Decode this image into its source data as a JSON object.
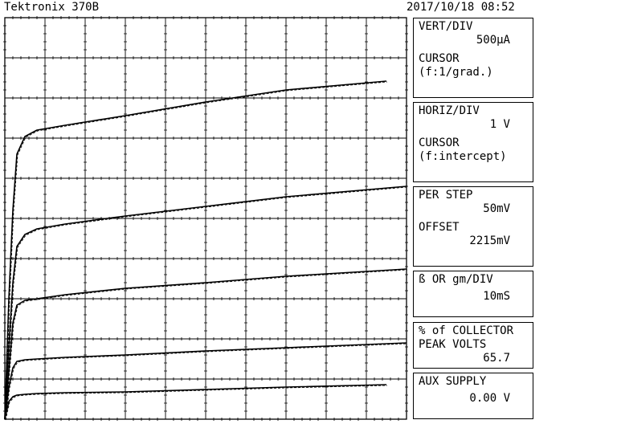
{
  "header": {
    "title": "Tektronix 370B",
    "datetime": "2017/10/18 08:52"
  },
  "panels": {
    "vert": {
      "label": "VERT/DIV",
      "value": "500µA",
      "cursor_label": "CURSOR",
      "cursor_mode": "(f:1/grad.)"
    },
    "horiz": {
      "label": "HORIZ/DIV",
      "value": "1 V",
      "cursor_label": "CURSOR",
      "cursor_mode": "(f:intercept)"
    },
    "step": {
      "label": "PER STEP",
      "value": "50mV",
      "offset_label": "OFFSET",
      "offset_value": "2215mV"
    },
    "beta": {
      "label": "ß OR gm/DIV",
      "value": "10mS"
    },
    "collector": {
      "label1": "% of COLLECTOR",
      "label2": "PEAK VOLTS",
      "value": "65.7"
    },
    "aux": {
      "label": "AUX SUPPLY",
      "value": "0.00 V"
    }
  },
  "chart_data": {
    "type": "line",
    "grid": true,
    "x_divisions": 10,
    "y_divisions": 10,
    "xlim": [
      0,
      10
    ],
    "ylim": [
      0,
      5
    ],
    "x_unit": "V",
    "y_unit": "mA",
    "series": [
      {
        "x": [
          0.0,
          0.1,
          0.2,
          0.3,
          0.5,
          0.8,
          1.5,
          3,
          5,
          7,
          9.5
        ],
        "y": [
          0.0,
          0.22,
          0.28,
          0.3,
          0.31,
          0.32,
          0.33,
          0.34,
          0.37,
          0.4,
          0.43
        ]
      },
      {
        "x": [
          0.0,
          0.1,
          0.2,
          0.3,
          0.5,
          0.8,
          1.5,
          3,
          5,
          7,
          10
        ],
        "y": [
          0.0,
          0.4,
          0.64,
          0.72,
          0.74,
          0.75,
          0.77,
          0.8,
          0.85,
          0.89,
          0.95
        ]
      },
      {
        "x": [
          0.0,
          0.1,
          0.2,
          0.3,
          0.5,
          0.8,
          1.5,
          3,
          5,
          7,
          10
        ],
        "y": [
          0.0,
          0.6,
          1.2,
          1.42,
          1.48,
          1.5,
          1.55,
          1.63,
          1.7,
          1.78,
          1.87
        ]
      },
      {
        "x": [
          0.0,
          0.1,
          0.2,
          0.3,
          0.5,
          0.8,
          1.5,
          3,
          5,
          7,
          10
        ],
        "y": [
          0.0,
          0.9,
          1.7,
          2.15,
          2.3,
          2.37,
          2.43,
          2.53,
          2.65,
          2.77,
          2.9
        ]
      },
      {
        "x": [
          0.0,
          0.1,
          0.2,
          0.3,
          0.5,
          0.8,
          1.5,
          3,
          5,
          7,
          9.5
        ],
        "y": [
          0.0,
          1.5,
          2.6,
          3.3,
          3.52,
          3.6,
          3.66,
          3.78,
          3.95,
          4.1,
          4.21
        ]
      }
    ]
  }
}
